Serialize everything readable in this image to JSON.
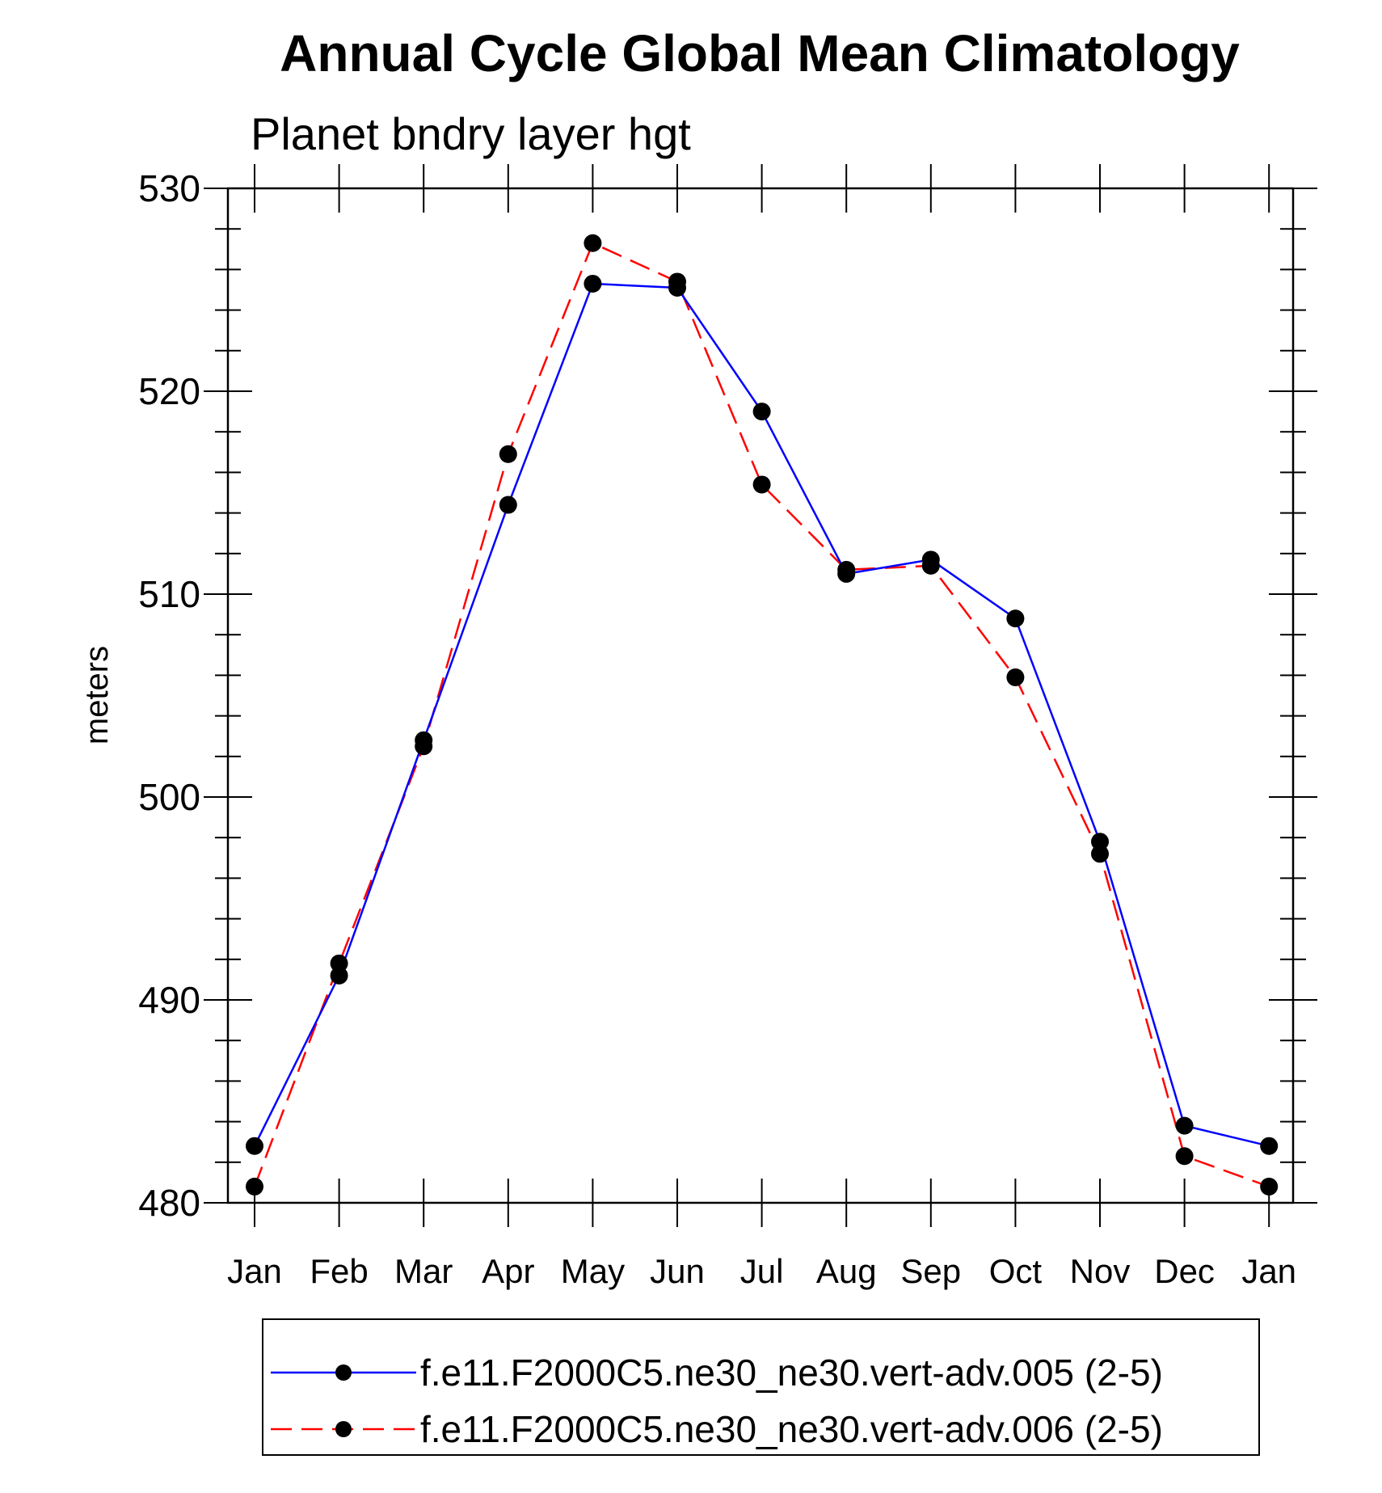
{
  "chart_data": {
    "type": "line",
    "title": "Annual Cycle Global Mean Climatology",
    "subtitle": "Planet bndry layer hgt",
    "ylabel": "meters",
    "xlabel": "",
    "categories": [
      "Jan",
      "Feb",
      "Mar",
      "Apr",
      "May",
      "Jun",
      "Jul",
      "Aug",
      "Sep",
      "Oct",
      "Nov",
      "Dec",
      "Jan"
    ],
    "ylim": [
      480,
      530
    ],
    "yticks": [
      "480",
      "490",
      "500",
      "510",
      "520",
      "530"
    ],
    "grid": false,
    "legend_position": "bottom",
    "series": [
      {
        "name": "f.e11.F2000C5.ne30_ne30.vert-adv.005 (2-5)",
        "color": "#0000ff",
        "dash": "solid",
        "marker": "filled-circle",
        "values": [
          482.8,
          491.2,
          502.8,
          514.4,
          525.3,
          525.1,
          519.0,
          511.0,
          511.7,
          508.8,
          497.8,
          483.8,
          482.8
        ]
      },
      {
        "name": "f.e11.F2000C5.ne30_ne30.vert-adv.006 (2-5)",
        "color": "#ff0000",
        "dash": "dashed",
        "marker": "filled-circle",
        "values": [
          480.8,
          491.8,
          502.5,
          516.9,
          527.3,
          525.4,
          515.4,
          511.2,
          511.4,
          505.9,
          497.2,
          482.3,
          480.8
        ]
      }
    ]
  }
}
